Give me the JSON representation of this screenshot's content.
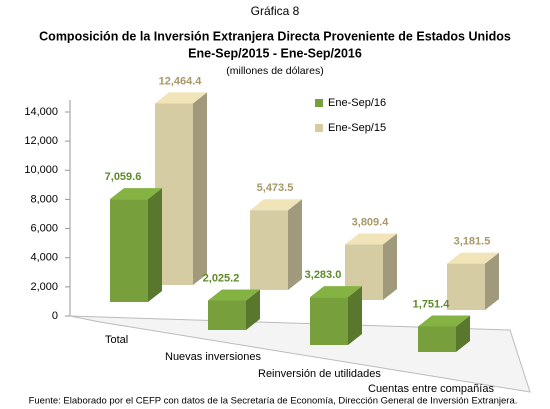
{
  "chart_data": {
    "type": "bar3d",
    "title": "Gráfica 8",
    "subtitle": "Composición de la Inversión Extranjera Directa Proveniente de  Estados Unidos",
    "period": "Ene-Sep/2015 - Ene-Sep/2016",
    "units": "(millones de dólares)",
    "source": "Fuente: Elaborado por el CEFP con datos de la Secretaría de Economía, Dirección General de Inversión Extranjera.",
    "categories": [
      "Total",
      "Nuevas inversiones",
      "Reinversión de utilidades",
      "Cuentas entre compañías"
    ],
    "series": [
      {
        "name": "Ene-Sep/16",
        "color": "#77a03c",
        "values": [
          7059.6,
          2025.2,
          3283.0,
          1751.4
        ],
        "value_labels": [
          "7,059.6",
          "2,025.2",
          "3,283.0",
          "1,751.4"
        ]
      },
      {
        "name": "Ene-Sep/15",
        "color": "#d6cca4",
        "values": [
          12464.4,
          5473.5,
          3809.4,
          3181.5
        ],
        "value_labels": [
          "12,464.4",
          "5,473.5",
          "3,809.4",
          "3,181.5"
        ]
      }
    ],
    "ylim": [
      0,
      14000
    ],
    "yticks": [
      0,
      {
        "value": 2000,
        "label": "2,000"
      },
      {
        "value": 4000,
        "label": "4,000"
      },
      {
        "value": 6000,
        "label": "6,000"
      },
      {
        "value": 8000,
        "label": "8,000"
      },
      {
        "value": 10000,
        "label": "10,000"
      },
      {
        "value": 12000,
        "label": "12,000"
      },
      {
        "value": 14000,
        "label": "14,000"
      }
    ]
  }
}
